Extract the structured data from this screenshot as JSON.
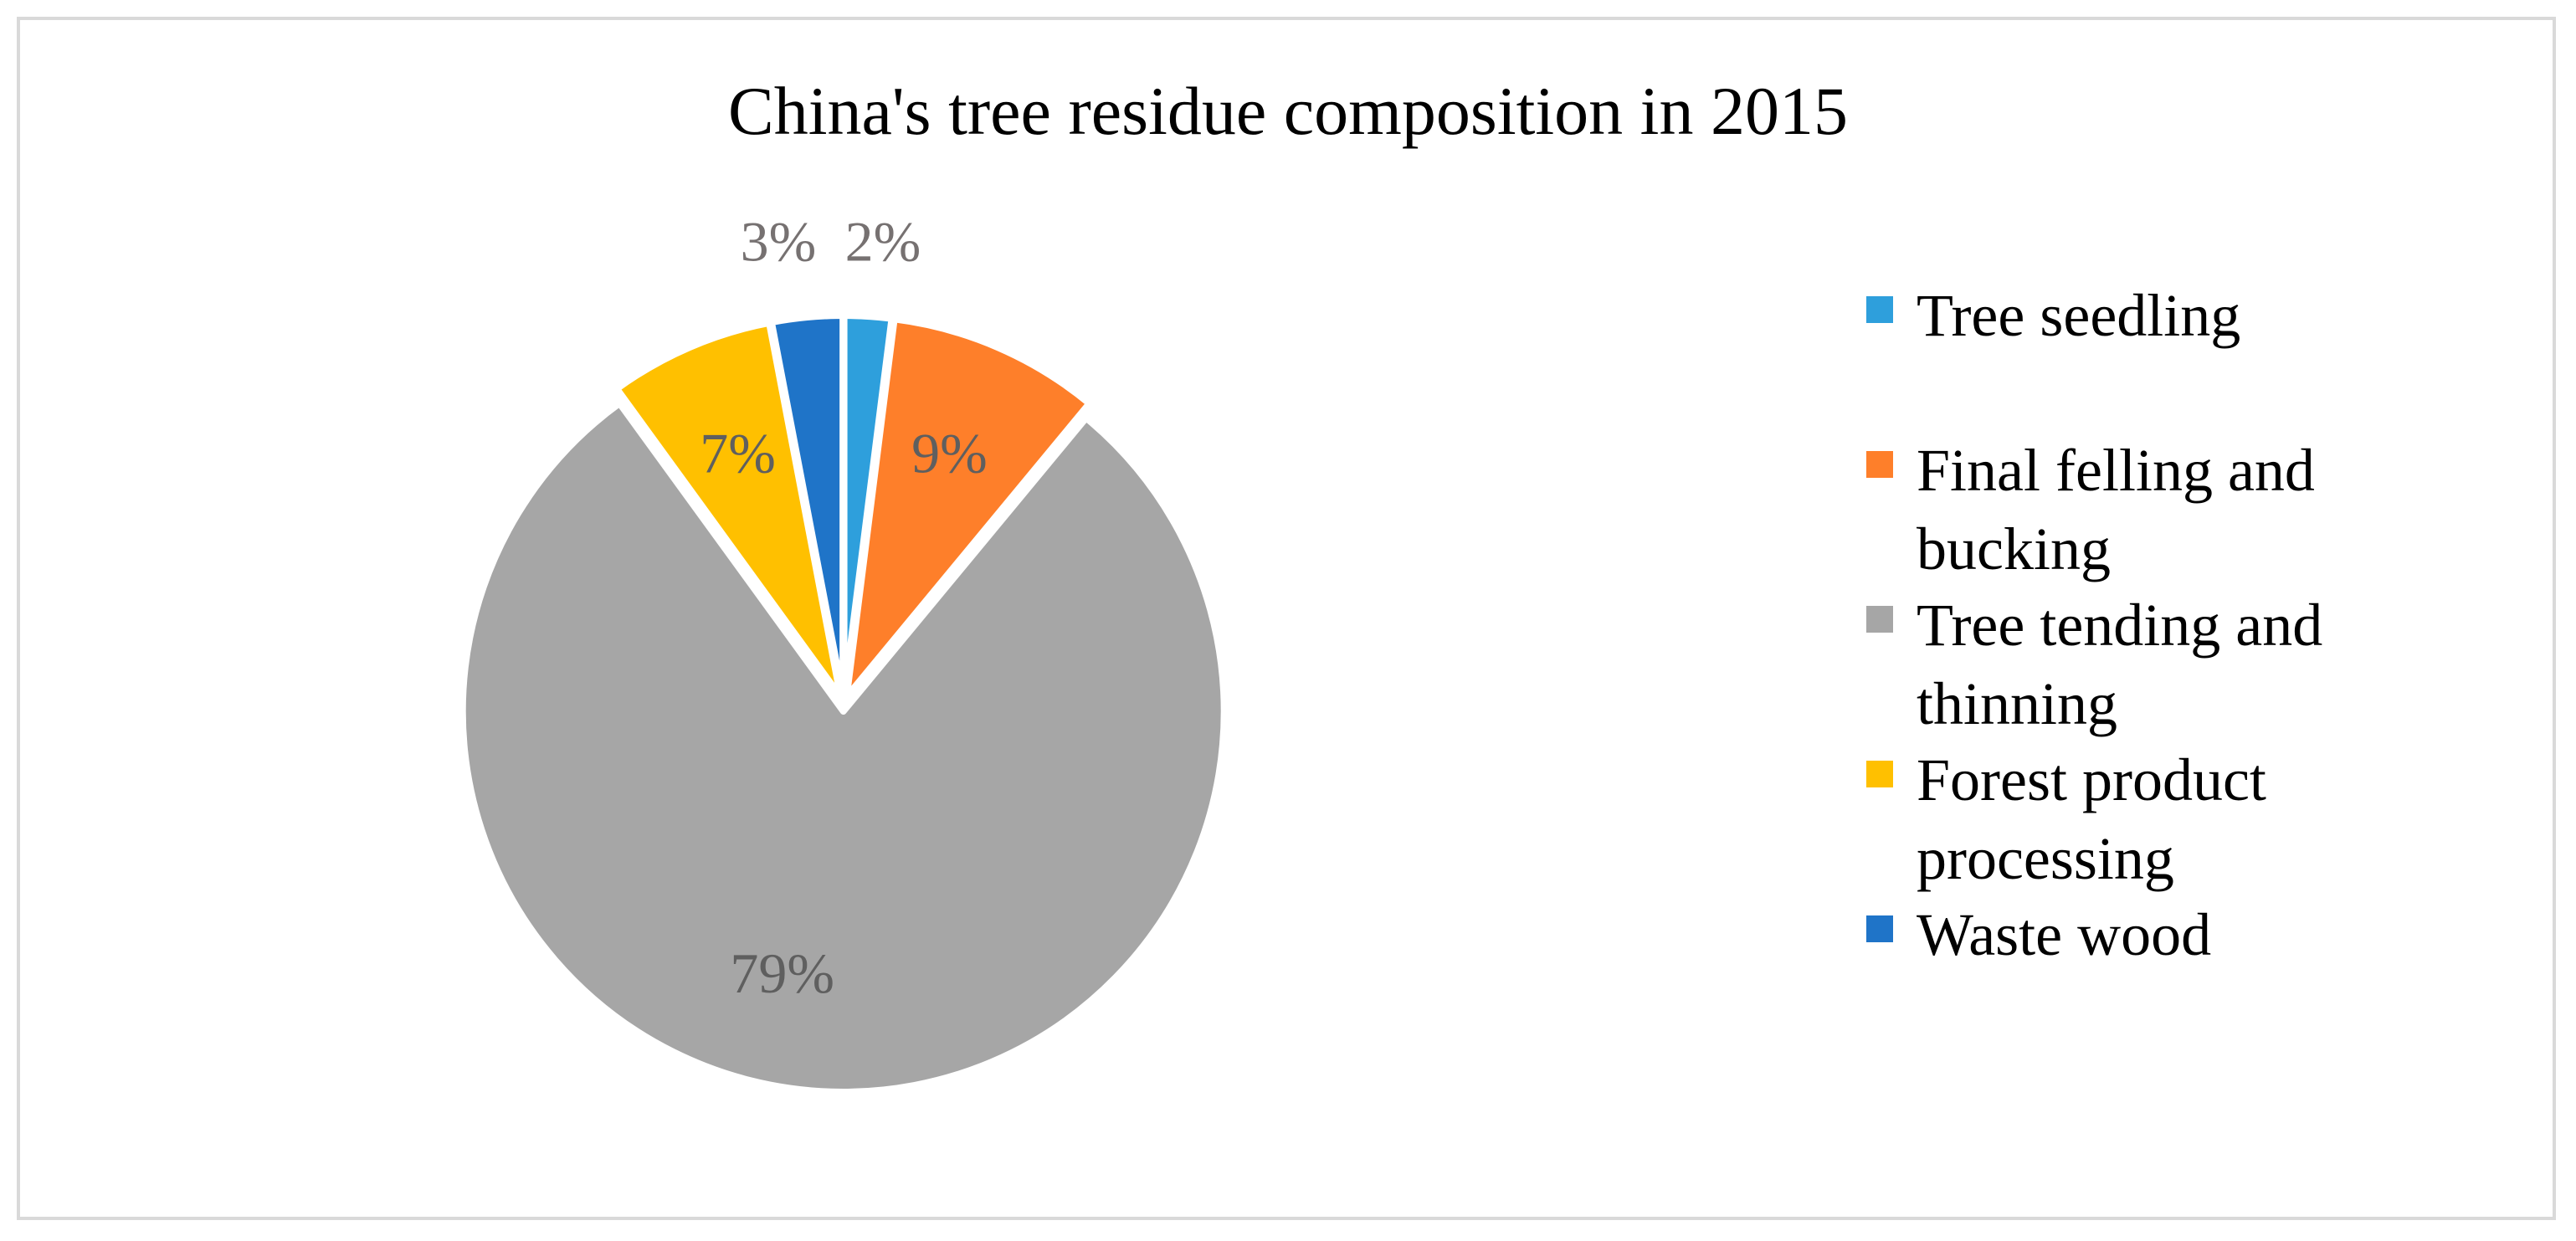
{
  "chart_data": {
    "type": "pie",
    "title": "China's tree residue composition in 2015",
    "legend_position": "right",
    "slices": [
      {
        "name": "Tree seedling",
        "value": 2,
        "label": "2%",
        "color": "#2e9fdc",
        "label_color": "#767171"
      },
      {
        "name": "Final felling and bucking",
        "value": 9,
        "label": "9%",
        "color": "#fe7f2a",
        "label_color": "#5f5f5f"
      },
      {
        "name": "Tree tending and thinning",
        "value": 79,
        "label": "79%",
        "color": "#a6a6a6",
        "label_color": "#5f5f5f"
      },
      {
        "name": "Forest product processing",
        "value": 7,
        "label": "7%",
        "color": "#ffc000",
        "label_color": "#5f5f5f"
      },
      {
        "name": "Waste wood",
        "value": 3,
        "label": "3%",
        "color": "#1f74c8",
        "label_color": "#767171"
      }
    ]
  }
}
